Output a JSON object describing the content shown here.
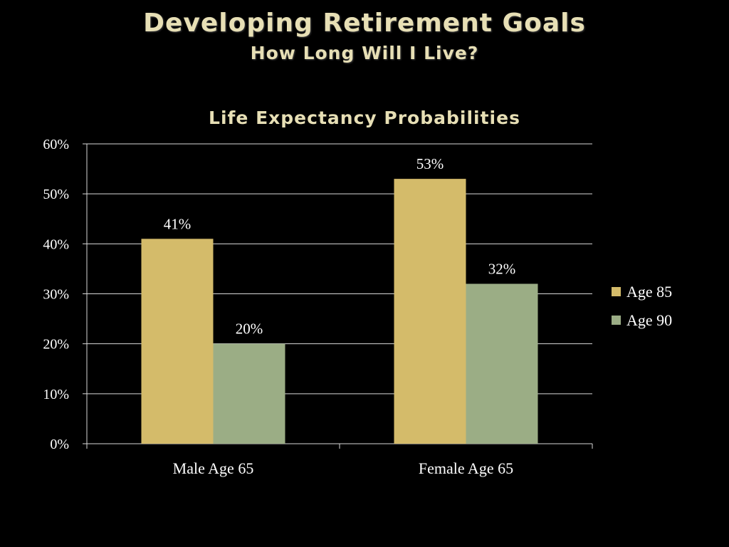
{
  "slide": {
    "title": "Developing Retirement Goals",
    "subtitle": "How Long Will I Live?"
  },
  "chart_data": {
    "type": "bar",
    "title": "Life Expectancy Probabilities",
    "categories": [
      "Male Age 65",
      "Female Age 65"
    ],
    "series": [
      {
        "name": "Age 85",
        "values": [
          41,
          53
        ],
        "labels": [
          "41%",
          "53%"
        ],
        "color": "#d4bb6a"
      },
      {
        "name": "Age 90",
        "values": [
          20,
          32
        ],
        "labels": [
          "20%",
          "32%"
        ],
        "color": "#9bad85"
      }
    ],
    "ylim": [
      0,
      60
    ],
    "yticks": [
      0,
      10,
      20,
      30,
      40,
      50,
      60
    ],
    "ytick_labels": [
      "0%",
      "10%",
      "20%",
      "30%",
      "40%",
      "50%",
      "60%"
    ],
    "xlabel": "",
    "ylabel": "",
    "grid": true,
    "legend": "right",
    "colors": {
      "background": "#000000",
      "text": "#ffffff",
      "title": "#e7dfb5",
      "grid": "#d9d9d9"
    }
  }
}
